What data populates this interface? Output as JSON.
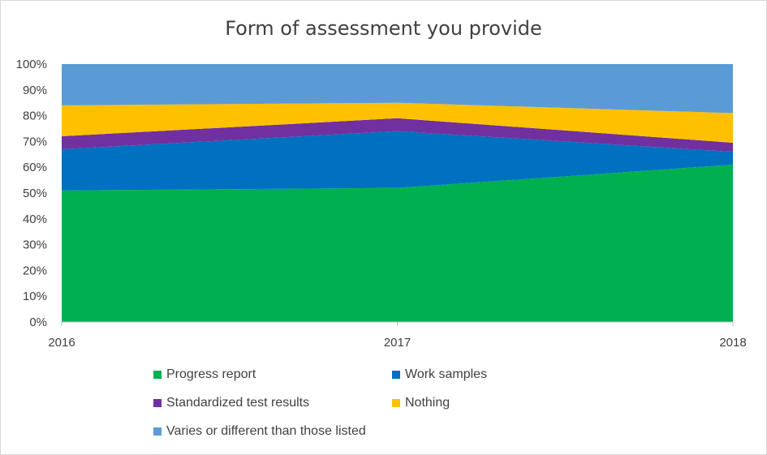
{
  "chart_data": {
    "type": "area",
    "stacked": true,
    "percent": true,
    "title": "Form of assessment  you provide",
    "x": [
      "2016",
      "2017",
      "2018"
    ],
    "ylim": [
      0,
      100
    ],
    "yticks": [
      "0%",
      "10%",
      "20%",
      "30%",
      "40%",
      "50%",
      "60%",
      "70%",
      "80%",
      "90%",
      "100%"
    ],
    "grid": false,
    "legend_position": "bottom",
    "series": [
      {
        "name": "Progress report",
        "color": "#00b050",
        "values": [
          51,
          52,
          61
        ]
      },
      {
        "name": "Work samples",
        "color": "#0070c0",
        "values": [
          16,
          22,
          5
        ]
      },
      {
        "name": "Standardized test results",
        "color": "#7030a0",
        "values": [
          5,
          5,
          3.5
        ]
      },
      {
        "name": "Nothing",
        "color": "#ffc000",
        "values": [
          12,
          6,
          11.5
        ]
      },
      {
        "name": "Varies or different than those listed",
        "color": "#5b9bd5",
        "values": [
          16,
          15,
          19
        ]
      }
    ]
  }
}
